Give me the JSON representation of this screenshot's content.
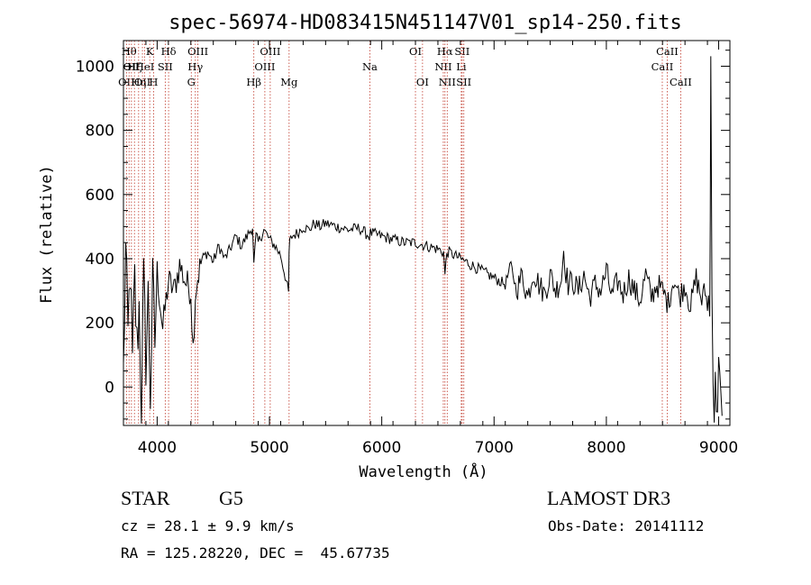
{
  "chart_data": {
    "type": "line",
    "title": "spec-56974-HD083415N451147V01_sp14-250.fits",
    "xlabel": "Wavelength (Å)",
    "ylabel": "Flux (relative)",
    "xlim": [
      3700,
      9100
    ],
    "ylim": [
      -120,
      1080
    ],
    "xticks": [
      4000,
      5000,
      6000,
      7000,
      8000,
      9000
    ],
    "yticks": [
      0,
      200,
      400,
      600,
      800,
      1000
    ],
    "grid": false,
    "series": [
      {
        "color": "#000000",
        "x": [
          3700,
          3720,
          3740,
          3760,
          3780,
          3800,
          3820,
          3840,
          3860,
          3880,
          3900,
          3920,
          3940,
          3960,
          3980,
          4000,
          4050,
          4100,
          4150,
          4200,
          4250,
          4300,
          4320,
          4340,
          4360,
          4400,
          4450,
          4500,
          4550,
          4600,
          4650,
          4700,
          4750,
          4800,
          4850,
          4861,
          4880,
          4900,
          4950,
          5000,
          5050,
          5100,
          5150,
          5170,
          5175,
          5180,
          5200,
          5250,
          5300,
          5350,
          5400,
          5450,
          5500,
          5600,
          5700,
          5800,
          5890,
          5900,
          6000,
          6100,
          6200,
          6300,
          6400,
          6500,
          6550,
          6563,
          6580,
          6600,
          6700,
          6800,
          6900,
          7000,
          7100,
          7150,
          7200,
          7250,
          7300,
          7350,
          7400,
          7450,
          7500,
          7550,
          7600,
          7620,
          7640,
          7660,
          7700,
          7750,
          7800,
          7850,
          7900,
          7950,
          8000,
          8050,
          8100,
          8150,
          8200,
          8250,
          8300,
          8350,
          8400,
          8450,
          8500,
          8550,
          8600,
          8650,
          8700,
          8750,
          8800,
          8850,
          8880,
          8900,
          8910,
          8920,
          8925,
          8930,
          8935,
          8940,
          8950,
          8960,
          8970,
          8980,
          8990,
          9000,
          9010,
          9020,
          9030
        ],
        "y": [
          40,
          420,
          150,
          380,
          60,
          330,
          120,
          250,
          -50,
          320,
          90,
          280,
          -20,
          310,
          140,
          360,
          180,
          330,
          300,
          380,
          330,
          300,
          120,
          290,
          340,
          400,
          420,
          390,
          440,
          400,
          430,
          470,
          440,
          470,
          500,
          380,
          470,
          450,
          490,
          460,
          440,
          410,
          330,
          290,
          420,
          450,
          470,
          480,
          500,
          490,
          510,
          500,
          510,
          500,
          490,
          495,
          470,
          480,
          470,
          460,
          450,
          450,
          440,
          430,
          420,
          350,
          420,
          420,
          400,
          380,
          360,
          340,
          320,
          380,
          300,
          350,
          280,
          360,
          320,
          290,
          350,
          300,
          340,
          430,
          360,
          320,
          330,
          300,
          350,
          280,
          320,
          300,
          360,
          280,
          330,
          290,
          340,
          300,
          270,
          350,
          280,
          320,
          300,
          260,
          340,
          280,
          320,
          250,
          340,
          270,
          300,
          250,
          280,
          220,
          520,
          1050,
          700,
          300,
          0,
          -100,
          60,
          -80,
          -90,
          80,
          40,
          -30,
          -90
        ]
      }
    ],
    "lines": [
      {
        "w": 3727,
        "label": "OII",
        "row": 2
      },
      {
        "w": 3750,
        "label": "Hθ",
        "row": 0
      },
      {
        "w": 3771,
        "label": "OII",
        "row": 1
      },
      {
        "w": 3798,
        "label": "Hζ",
        "row": 1
      },
      {
        "w": 3835,
        "label": "Hη",
        "row": 2
      },
      {
        "w": 3869,
        "label": "OII",
        "row": 2
      },
      {
        "w": 3889,
        "label": "HeI",
        "row": 1
      },
      {
        "w": 3934,
        "label": "K",
        "row": 0
      },
      {
        "w": 3968,
        "label": "H",
        "row": 2
      },
      {
        "w": 4072,
        "label": "SII",
        "row": 1
      },
      {
        "w": 4102,
        "label": "Hδ",
        "row": 0
      },
      {
        "w": 4304,
        "label": "G",
        "row": 2
      },
      {
        "w": 4340,
        "label": "Hγ",
        "row": 1
      },
      {
        "w": 4363,
        "label": "OIII",
        "row": 0
      },
      {
        "w": 4861,
        "label": "Hβ",
        "row": 2
      },
      {
        "w": 4959,
        "label": "OIII",
        "row": 1
      },
      {
        "w": 5007,
        "label": "OIII",
        "row": 0
      },
      {
        "w": 5175,
        "label": "Mg",
        "row": 2
      },
      {
        "w": 5894,
        "label": "Na",
        "row": 1
      },
      {
        "w": 6300,
        "label": "OI",
        "row": 0
      },
      {
        "w": 6363,
        "label": "OI",
        "row": 2
      },
      {
        "w": 6548,
        "label": "NII",
        "row": 1
      },
      {
        "w": 6563,
        "label": "Hα",
        "row": 0
      },
      {
        "w": 6583,
        "label": "NII",
        "row": 2
      },
      {
        "w": 6708,
        "label": "Li",
        "row": 1
      },
      {
        "w": 6716,
        "label": "SII",
        "row": 0
      },
      {
        "w": 6731,
        "label": "SII",
        "row": 2
      },
      {
        "w": 8498,
        "label": "CaII",
        "row": 1
      },
      {
        "w": 8542,
        "label": "CaII",
        "row": 0
      },
      {
        "w": 8662,
        "label": "CaII",
        "row": 2
      }
    ]
  },
  "info": {
    "class": "STAR",
    "subclass": "G5",
    "survey": "LAMOST DR3",
    "redshift": "cz = 28.1 ± 9.9 km/s",
    "obsdate": "Obs-Date: 20141112",
    "coords": "RA = 125.28220, DEC =  45.67735"
  }
}
